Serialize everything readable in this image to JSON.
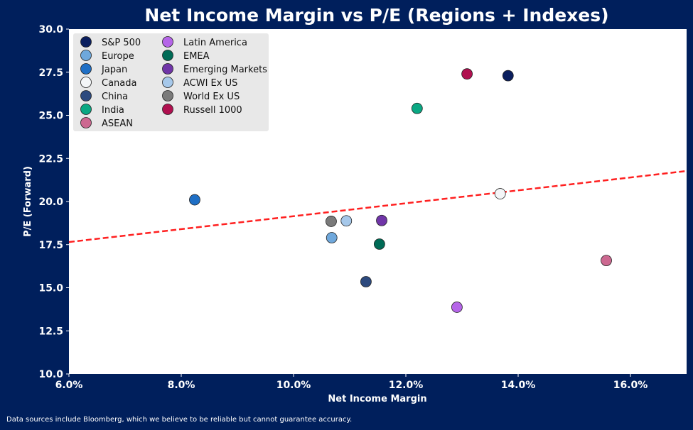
{
  "chart_data": {
    "type": "scatter",
    "title": "Net Income Margin vs P/E (Regions + Indexes)",
    "xlabel": "Net Income Margin",
    "ylabel": "P/E (Forward)",
    "xlim": [
      6.0,
      17.0
    ],
    "ylim": [
      10.0,
      30.0
    ],
    "x_ticks": [
      "6.0%",
      "8.0%",
      "10.0%",
      "12.0%",
      "14.0%",
      "16.0%"
    ],
    "x_tick_values": [
      6,
      8,
      10,
      12,
      14,
      16
    ],
    "y_ticks": [
      "10.0",
      "12.5",
      "15.0",
      "17.5",
      "20.0",
      "22.5",
      "25.0",
      "27.5",
      "30.0"
    ],
    "y_tick_values": [
      10,
      12.5,
      15,
      17.5,
      20,
      22.5,
      25,
      27.5,
      30
    ],
    "grid": false,
    "legend_placement": "top-left",
    "series": [
      {
        "name": "S&P 500",
        "x": 13.82,
        "y": 27.3,
        "color": "#0b1f5e"
      },
      {
        "name": "Europe",
        "x": 10.68,
        "y": 17.9,
        "color": "#6fa8dc"
      },
      {
        "name": "Japan",
        "x": 8.24,
        "y": 20.1,
        "color": "#1f6fc5"
      },
      {
        "name": "Canada",
        "x": 13.68,
        "y": 20.45,
        "color": "#f4f6f8"
      },
      {
        "name": "China",
        "x": 11.29,
        "y": 15.35,
        "color": "#2d4a7e"
      },
      {
        "name": "India",
        "x": 12.2,
        "y": 25.4,
        "color": "#0aa883"
      },
      {
        "name": "ASEAN",
        "x": 15.57,
        "y": 16.58,
        "color": "#cc6890"
      },
      {
        "name": "Latin America",
        "x": 12.91,
        "y": 13.87,
        "color": "#b565e8"
      },
      {
        "name": "EMEA",
        "x": 11.53,
        "y": 17.53,
        "color": "#006b56"
      },
      {
        "name": "Emerging Markets",
        "x": 11.57,
        "y": 18.9,
        "color": "#7035a8"
      },
      {
        "name": "ACWI Ex US",
        "x": 10.94,
        "y": 18.88,
        "color": "#a6c8ea"
      },
      {
        "name": "World Ex US",
        "x": 10.67,
        "y": 18.85,
        "color": "#7a7a7a"
      },
      {
        "name": "Russell 1000",
        "x": 13.09,
        "y": 27.4,
        "color": "#b0104f"
      }
    ],
    "trendline": {
      "x": [
        6.0,
        17.0
      ],
      "y": [
        17.65,
        21.77
      ],
      "color": "#ff2020",
      "style": "dashed"
    }
  },
  "footer": "Data sources include Bloomberg, which we believe to be reliable but cannot guarantee accuracy."
}
